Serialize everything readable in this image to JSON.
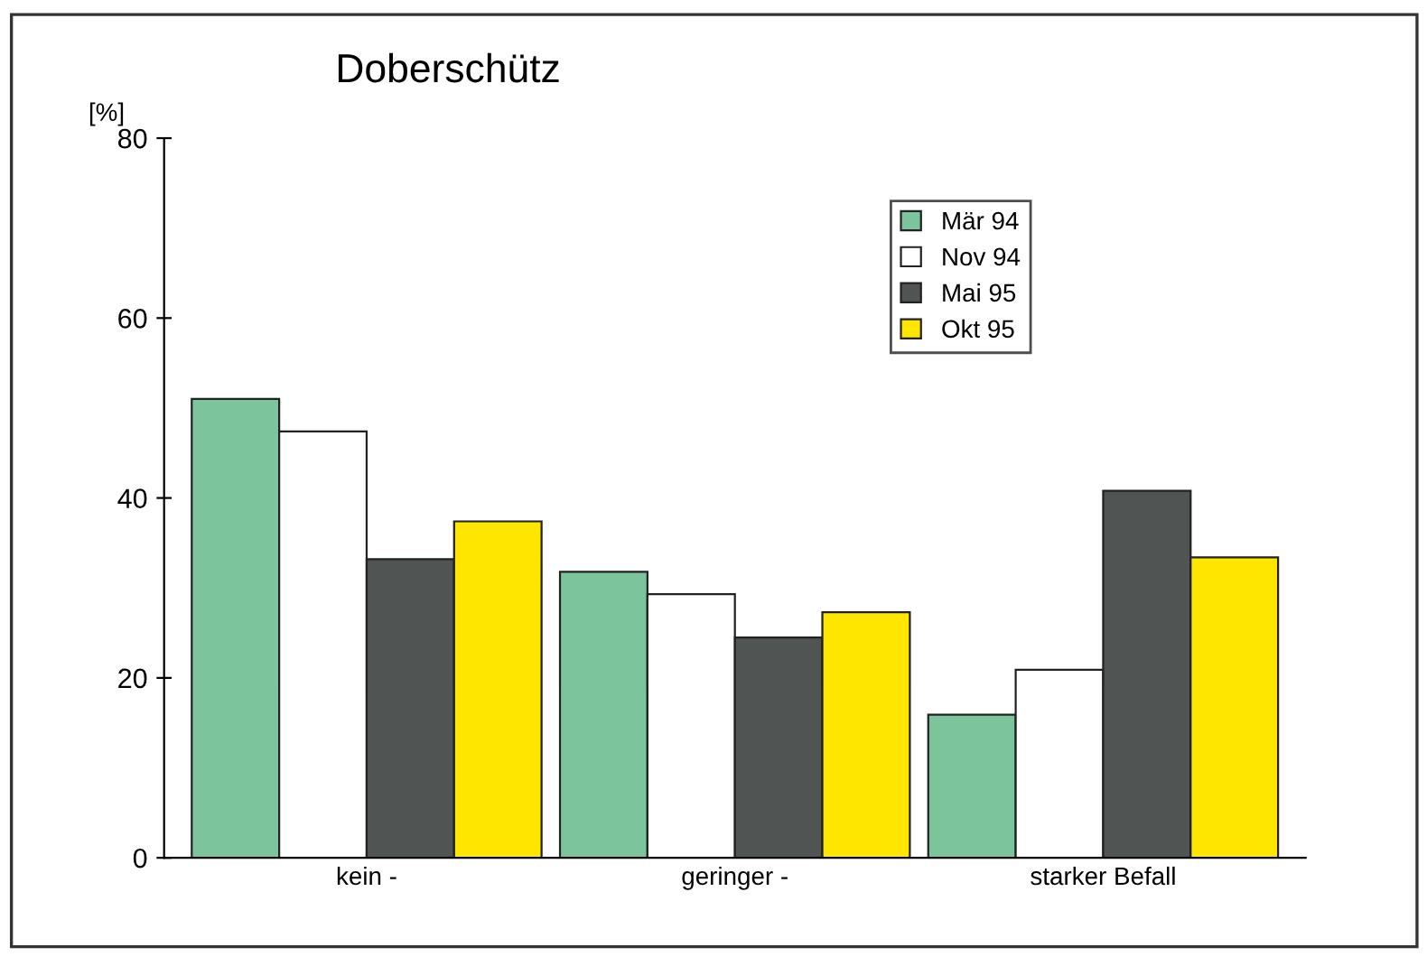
{
  "chart_data": {
    "type": "bar",
    "title": "Doberschütz",
    "ylabel": "[%]",
    "categories": [
      "kein -",
      "geringer -",
      "starker Befall"
    ],
    "series": [
      {
        "name": "Mär 94",
        "color": "#7cc49c",
        "values": [
          51,
          31.8,
          15.9
        ]
      },
      {
        "name": "Nov 94",
        "color": "#ffffff",
        "values": [
          47.4,
          29.3,
          20.9
        ]
      },
      {
        "name": "Mai 95",
        "color": "#505452",
        "values": [
          33.2,
          24.5,
          40.8
        ]
      },
      {
        "name": "Okt 95",
        "color": "#ffe600",
        "values": [
          37.4,
          27.3,
          33.4
        ]
      }
    ],
    "ylim": [
      0,
      80
    ],
    "yticks": [
      0,
      20,
      40,
      60,
      80
    ],
    "grid": false,
    "legend": "top right"
  }
}
